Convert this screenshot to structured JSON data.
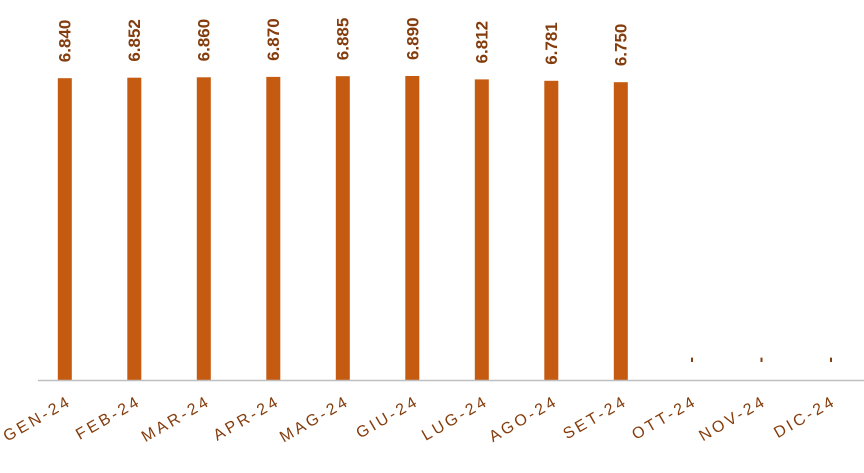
{
  "chart_data": {
    "type": "bar",
    "categories": [
      "GEN-24",
      "FEB-24",
      "MAR-24",
      "APR-24",
      "MAG-24",
      "GIU-24",
      "LUG-24",
      "AGO-24",
      "SET-24",
      "OTT-24",
      "NOV-24",
      "DIC-24"
    ],
    "values": [
      6840,
      6852,
      6860,
      6870,
      6885,
      6890,
      6812,
      6781,
      6750,
      null,
      null,
      null
    ],
    "data_labels": [
      "6.840",
      "6.852",
      "6.860",
      "6.870",
      "6.885",
      "6.890",
      "6.812",
      "6.781",
      "6.750",
      "-",
      "-",
      "-"
    ],
    "title": "",
    "xlabel": "",
    "ylabel": "",
    "ylim": [
      0,
      6890
    ],
    "grid": false,
    "legend": "none",
    "colors": {
      "bar": "#C55A11",
      "value_label": "#843C0C",
      "tick_label": "#843C0C",
      "axis": "#BFBFBF"
    }
  }
}
